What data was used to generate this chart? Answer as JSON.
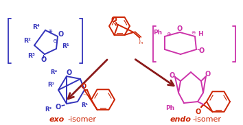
{
  "background_color": "#ffffff",
  "blue": "#3333bb",
  "red": "#cc2200",
  "magenta": "#cc33aa",
  "dark_red": "#8b1a1a",
  "figsize": [
    3.54,
    1.82
  ],
  "dpi": 100,
  "exo_label_italic": "exo",
  "exo_label_rest": "-isomer",
  "endo_label_italic": "endo",
  "endo_label_rest": "-isomer"
}
